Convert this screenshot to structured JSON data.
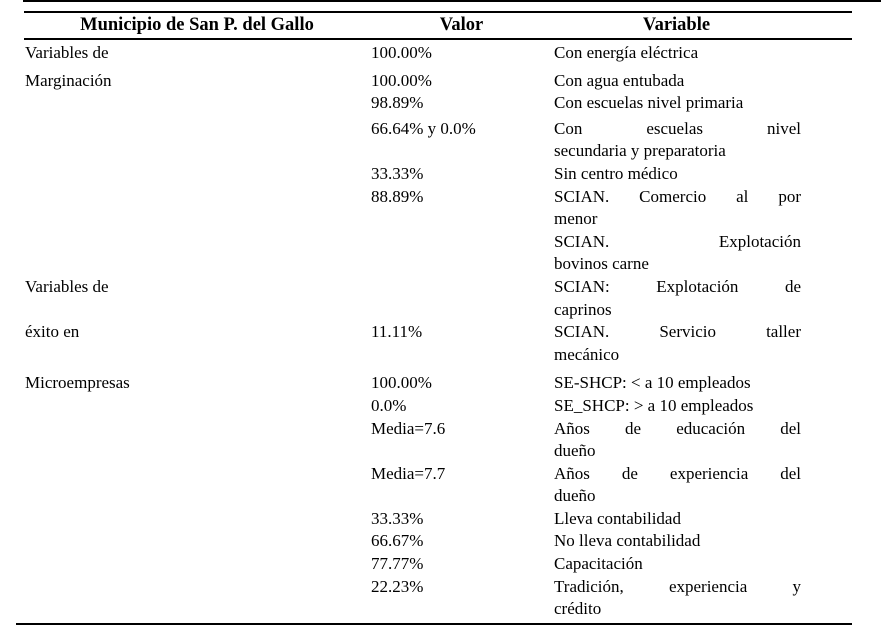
{
  "colors": {
    "text": "#000000",
    "background": "#ffffff",
    "rule": "#000000"
  },
  "table": {
    "header": {
      "col1": "Municipio de San P. del Gallo",
      "col2": "Valor",
      "col3": "Variable"
    },
    "rows": [
      {
        "c1": "Variables de",
        "c2": "100.00%",
        "gap": 0,
        "v": [
          {
            "t": "Con energía eléctrica",
            "j": false
          }
        ]
      },
      {
        "c1": "Marginación",
        "c2": "100.00%",
        "gap": 5,
        "v": [
          {
            "t": "Con agua entubada",
            "j": false
          }
        ]
      },
      {
        "c1": "",
        "c2": "98.89%",
        "gap": 0,
        "v": [
          {
            "t": "Con escuelas nivel primaria",
            "j": false
          }
        ]
      },
      {
        "c1": "",
        "c2": "66.64% y 0.0%",
        "gap": 3,
        "v": [
          {
            "t": "Con escuelas nivel",
            "j": true
          },
          {
            "t": "secundaria y preparatoria",
            "j": false
          }
        ]
      },
      {
        "c1": "",
        "c2": "33.33%",
        "gap": 0,
        "v": [
          {
            "t": "Sin centro médico",
            "j": false
          }
        ]
      },
      {
        "c1": "",
        "c2": "88.89%",
        "gap": 0,
        "v": [
          {
            "t": "SCIAN. Comercio al por",
            "j": true
          },
          {
            "t": "menor",
            "j": false
          }
        ]
      },
      {
        "c1": "",
        "c2": "",
        "gap": 0,
        "v": [
          {
            "t": "SCIAN. Explotación",
            "j": true
          },
          {
            "t": "bovinos carne",
            "j": false
          }
        ]
      },
      {
        "c1": "Variables de",
        "c2": "",
        "gap": 0,
        "v": [
          {
            "t": "SCIAN: Explotación de",
            "j": true
          },
          {
            "t": "caprinos",
            "j": false
          }
        ]
      },
      {
        "c1": "éxito en",
        "c2": "11.11%",
        "gap": 0,
        "v": [
          {
            "t": "SCIAN. Servicio taller",
            "j": true
          },
          {
            "t": "mecánico",
            "j": false
          }
        ]
      },
      {
        "c1": "Microempresas",
        "c2": "100.00%",
        "gap": 6,
        "v": [
          {
            "t": "SE-SHCP: < a 10 empleados",
            "j": false
          }
        ]
      },
      {
        "c1": "",
        "c2": "0.0%",
        "gap": 0,
        "v": [
          {
            "t": "SE_SHCP: > a 10 empleados",
            "j": false
          }
        ]
      },
      {
        "c1": "",
        "c2": "Media=7.6",
        "gap": 0,
        "v": [
          {
            "t": "Años de educación del",
            "j": true
          },
          {
            "t": "dueño",
            "j": false
          }
        ]
      },
      {
        "c1": "",
        "c2": "Media=7.7",
        "gap": 0,
        "v": [
          {
            "t": "Años de experiencia del",
            "j": true
          },
          {
            "t": "dueño",
            "j": false
          }
        ]
      },
      {
        "c1": "",
        "c2": "33.33%",
        "gap": 0,
        "v": [
          {
            "t": "Lleva contabilidad",
            "j": false
          }
        ]
      },
      {
        "c1": "",
        "c2": "66.67%",
        "gap": 0,
        "v": [
          {
            "t": "No lleva contabilidad",
            "j": false
          }
        ]
      },
      {
        "c1": "",
        "c2": "77.77%",
        "gap": 0,
        "v": [
          {
            "t": "Capacitación",
            "j": false
          }
        ]
      },
      {
        "c1": "",
        "c2": "22.23%",
        "gap": 0,
        "v": [
          {
            "t": "Tradición, experiencia y",
            "j": true
          },
          {
            "t": "crédito",
            "j": false
          }
        ]
      }
    ]
  }
}
